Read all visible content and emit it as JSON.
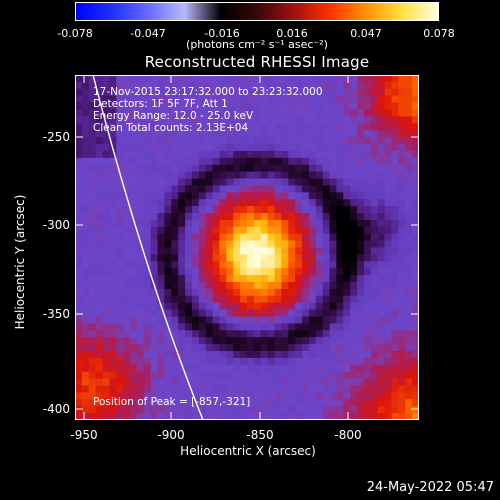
{
  "colorbar": {
    "ticks": [
      "-0.078",
      "-0.047",
      "-0.016",
      "0.016",
      "0.047",
      "0.078"
    ],
    "unit_label": "(photons cm⁻² s⁻¹ asec⁻²)",
    "colors": [
      "#0000ff",
      "#2030ff",
      "#6a6aff",
      "#b8b8ff",
      "#000000",
      "#3a0808",
      "#a01010",
      "#ff3000",
      "#ff9000",
      "#ffe040",
      "#ffffe0"
    ]
  },
  "plot": {
    "title": "Reconstructed RHESSI Image",
    "info": [
      "17-Nov-2015 23:17:32.000 to 23:23:32.000",
      "Detectors: 1F 5F 7F, Att 1",
      "Energy Range: 12.0 - 25.0 keV",
      "Clean     Total counts: 2.13E+04"
    ],
    "peak_label": "Position of Peak = [-857,-321]",
    "x_label": "Heliocentric X (arcsec)",
    "y_label": "Heliocentric Y (arcsec)",
    "x_ticks": [
      "-950",
      "-900",
      "-850",
      "-800"
    ],
    "y_ticks": [
      "-250",
      "-300",
      "-350",
      "-400"
    ],
    "date_stamp": "24-May-2022 05:47",
    "x_range": [
      -955,
      -785
    ],
    "y_range": [
      -412,
      -242
    ],
    "peak": [
      -857,
      -321
    ]
  }
}
